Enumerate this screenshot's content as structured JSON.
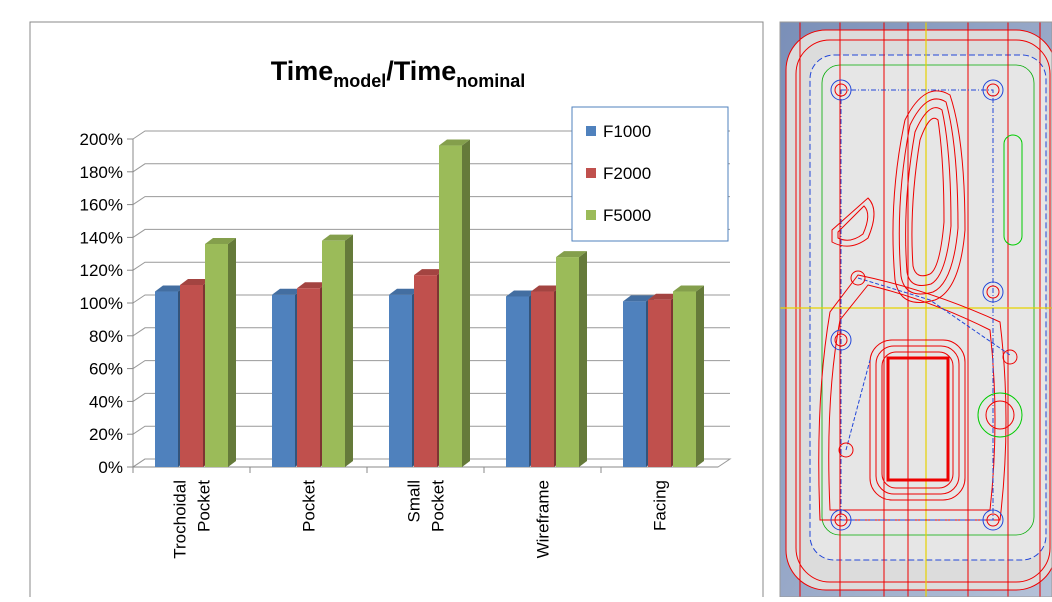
{
  "chart_data": {
    "type": "bar",
    "title": [
      "Time",
      "model",
      "/Time",
      "nominal"
    ],
    "categories": [
      [
        "Trochoidal",
        "Pocket"
      ],
      [
        "Pocket"
      ],
      [
        "Small",
        "Pocket"
      ],
      [
        "Wireframe"
      ],
      [
        "Facing"
      ]
    ],
    "series": [
      {
        "name": "F1000",
        "color": "#4f81bd",
        "values": [
          107,
          105,
          105,
          104,
          101
        ]
      },
      {
        "name": "F2000",
        "color": "#c0504d",
        "values": [
          111,
          109,
          117,
          107,
          102
        ]
      },
      {
        "name": "F5000",
        "color": "#9bbb59",
        "values": [
          136,
          138,
          196,
          128,
          107
        ]
      }
    ],
    "ylim": [
      0,
      200
    ],
    "yticks": [
      {
        "value": 0,
        "label": "0%"
      },
      {
        "value": 20,
        "label": "20%"
      },
      {
        "value": 40,
        "label": "40%"
      },
      {
        "value": 60,
        "label": "60%"
      },
      {
        "value": 80,
        "label": "80%"
      },
      {
        "value": 100,
        "label": "100%"
      },
      {
        "value": 120,
        "label": "120%"
      },
      {
        "value": 140,
        "label": "140%"
      },
      {
        "value": 160,
        "label": "160%"
      },
      {
        "value": 180,
        "label": "180%"
      },
      {
        "value": 200,
        "label": "200%"
      }
    ],
    "grid": true,
    "legend": "upper-right"
  }
}
